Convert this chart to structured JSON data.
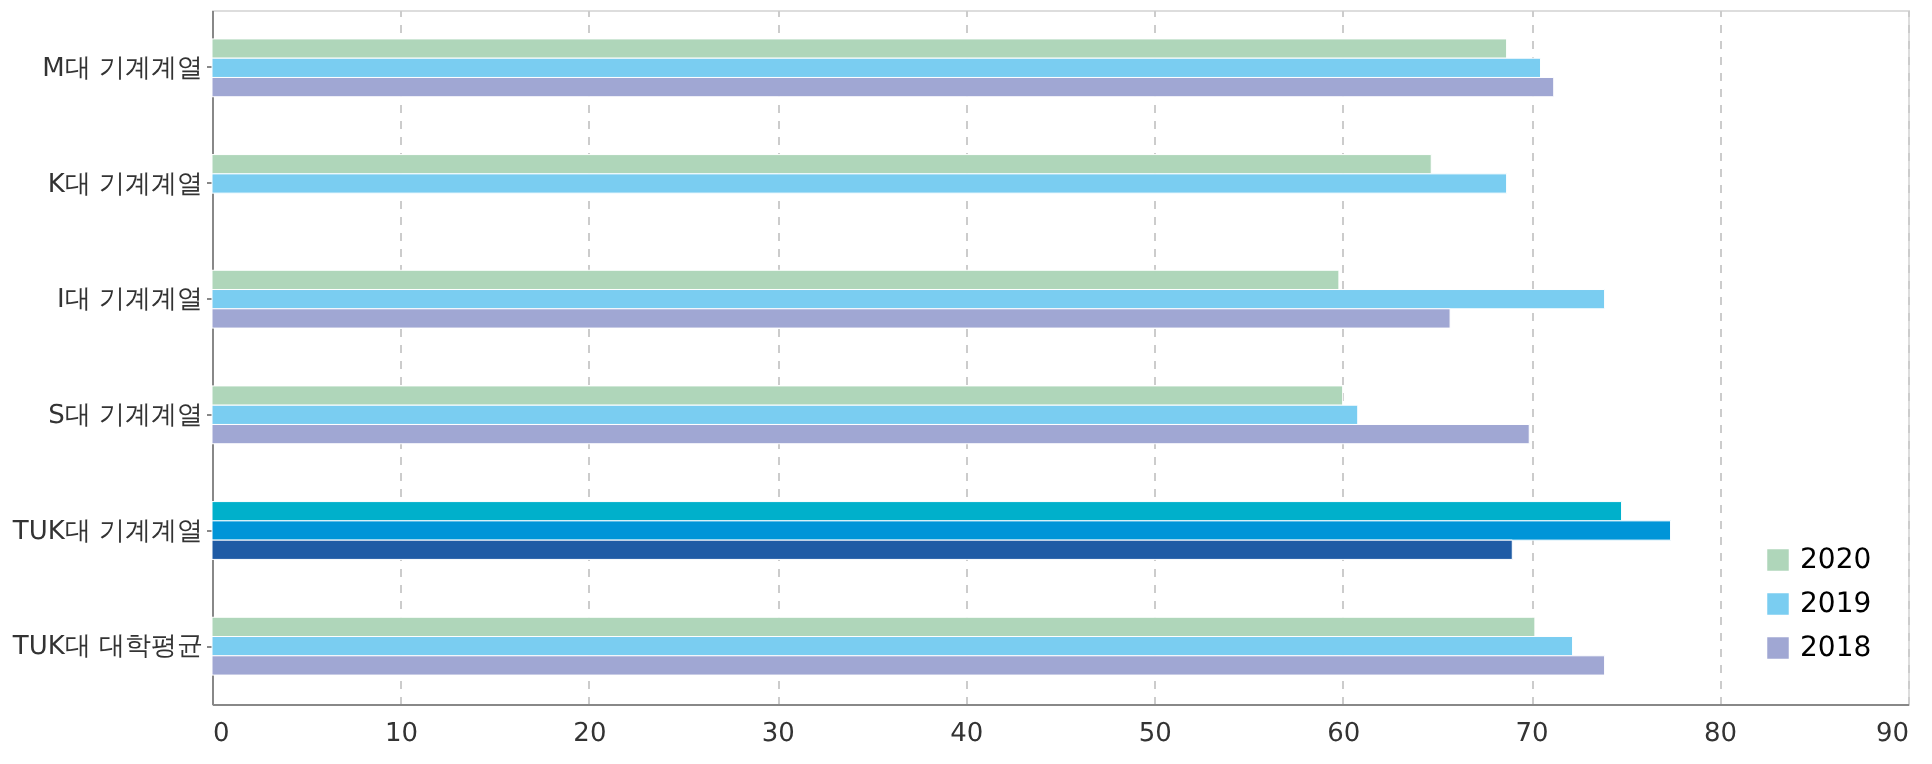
{
  "chart_data": {
    "type": "bar",
    "orientation": "horizontal",
    "categories": [
      "M대 기계계열",
      "K대 기계계열",
      "I대 기계계열",
      "S대 기계계열",
      "TUK대 기계계열",
      "TUK대 대학평균"
    ],
    "series": [
      {
        "name": "2020",
        "color": "#afd6ba",
        "colors": [
          "#afd6ba",
          "#afd6ba",
          "#afd6ba",
          "#afd6ba",
          "#00b0cb",
          "#afd6ba"
        ],
        "values": [
          68.7,
          64.7,
          59.8,
          60.0,
          74.8,
          70.2
        ]
      },
      {
        "name": "2019",
        "color": "#7acdf1",
        "colors": [
          "#7acdf1",
          "#7acdf1",
          "#7acdf1",
          "#7acdf1",
          "#0095d8",
          "#7acdf1"
        ],
        "values": [
          70.5,
          68.7,
          73.9,
          60.8,
          77.4,
          72.2
        ]
      },
      {
        "name": "2018",
        "color": "#a0a7d3",
        "colors": [
          "#a0a7d3",
          "#a0a7d3",
          "#a0a7d3",
          "#a0a7d3",
          "#1f5ba5",
          "#a0a7d3"
        ],
        "values": [
          71.2,
          null,
          65.7,
          69.9,
          69.0,
          73.9
        ]
      }
    ],
    "xlim": [
      0,
      90
    ],
    "xticks": [
      0,
      10,
      20,
      30,
      40,
      50,
      60,
      70,
      80,
      90
    ],
    "grid": "x",
    "legend": "bottom right"
  }
}
